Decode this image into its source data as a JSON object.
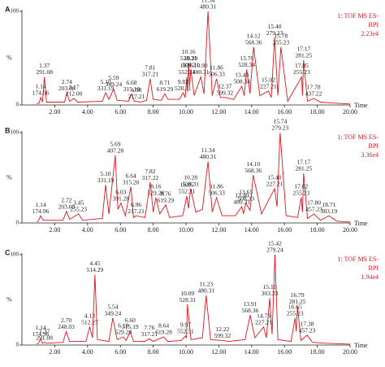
{
  "chart_data": [
    {
      "type": "line",
      "panel": "A",
      "y_label": "%",
      "x_label": "Time",
      "color": "#e3141d",
      "legend": [
        "1: TOF MS ES-",
        "BPI",
        "2.23e4"
      ],
      "xlim": [
        0,
        20
      ],
      "ylim": [
        0,
        100
      ],
      "yticks": [
        0,
        100
      ],
      "xticks": [
        {
          "value": 2,
          "label": "2.00"
        },
        {
          "value": 4,
          "label": "4.00"
        },
        {
          "value": 6,
          "label": "6.00"
        },
        {
          "value": 8,
          "label": "8.00"
        },
        {
          "value": 10,
          "label": "10.00"
        },
        {
          "value": 12,
          "label": "12.00"
        },
        {
          "value": 14,
          "label": "14.00"
        },
        {
          "value": 16,
          "label": "16.00"
        },
        {
          "value": 18,
          "label": "18.00"
        },
        {
          "value": 20,
          "label": "20.00"
        }
      ],
      "x": [
        0.9,
        1.05,
        1.14,
        1.25,
        1.37,
        1.5,
        2.6,
        2.74,
        2.9,
        3.17,
        3.4,
        4.9,
        5.1,
        5.3,
        5.59,
        5.8,
        6.5,
        6.68,
        6.85,
        6.98,
        7.2,
        7.6,
        7.81,
        8.0,
        8.5,
        8.71,
        8.9,
        9.6,
        9.82,
        9.95,
        10.05,
        10.1,
        10.16,
        10.22,
        10.29,
        10.5,
        10.9,
        11.1,
        11.34,
        11.6,
        11.86,
        12.1,
        12.37,
        12.9,
        13.4,
        13.55,
        13.7,
        13.9,
        14.12,
        14.5,
        15.02,
        15.2,
        15.4,
        15.6,
        15.78,
        16.2,
        17.05,
        17.1,
        17.17,
        17.4,
        17.78,
        18.2,
        19,
        20
      ],
      "values": [
        1,
        2,
        8,
        3,
        30,
        3,
        3,
        13,
        4,
        7,
        3,
        4,
        13,
        6,
        17,
        5,
        4,
        12,
        4,
        4,
        3,
        5,
        28,
        6,
        5,
        12,
        6,
        6,
        13,
        8,
        30,
        14,
        45,
        20,
        38,
        10,
        30,
        12,
        100,
        10,
        28,
        8,
        8,
        6,
        20,
        10,
        38,
        12,
        62,
        10,
        15,
        8,
        72,
        10,
        62,
        4,
        30,
        10,
        48,
        4,
        7,
        3,
        2,
        1
      ],
      "peaks": [
        {
          "time": 1.14,
          "mz": 174.96,
          "height": 8
        },
        {
          "time": 1.37,
          "mz": 291.08,
          "height": 30
        },
        {
          "time": 2.74,
          "mz": 203.08,
          "height": 13
        },
        {
          "time": 3.17,
          "mz": {
            "value": 212,
            "label": "212.00"
          },
          "height": 7
        },
        {
          "time": {
            "value": 5.1,
            "label": "5.10"
          },
          "mz": 331.19,
          "height": 13
        },
        {
          "time": 5.59,
          "mz": 349.24,
          "height": 17
        },
        {
          "time": 6.68,
          "mz": 315.19,
          "height": 12
        },
        {
          "time": 6.98,
          "mz": 217.21,
          "height": 4
        },
        {
          "time": 7.81,
          "mz": 317.21,
          "height": 28
        },
        {
          "time": 8.71,
          "mz": 619.29,
          "height": 12
        },
        {
          "time": 9.82,
          "mz": 528.31,
          "height": 13
        },
        {
          "time": 10.05,
          "mz": 552.31,
          "height": 30
        },
        {
          "time": 10.16,
          "mz": 528.31,
          "height": 45
        },
        {
          "time": 10.29,
          "mz": 504.31,
          "height": 38
        },
        {
          "time": {
            "value": 10.9,
            "label": "10.90"
          },
          "mz": 480.31,
          "height": 30
        },
        {
          "time": 11.34,
          "mz": 480.31,
          "height": 100
        },
        {
          "time": 11.86,
          "mz": 506.33,
          "height": 28
        },
        {
          "time": 12.37,
          "mz": 599.32,
          "height": 8
        },
        {
          "time": {
            "value": 13.4,
            "label": "13.40"
          },
          "mz": 508.34,
          "height": 20
        },
        {
          "time": {
            "value": 13.7,
            "label": "13.70"
          },
          "mz": 528.34,
          "height": 38
        },
        {
          "time": 14.12,
          "mz": 568.36,
          "height": 62
        },
        {
          "time": 15.02,
          "mz": 227.21,
          "height": 15
        },
        {
          "time": {
            "value": 15.4,
            "label": "15.40"
          },
          "mz": 279.23,
          "height": 72
        },
        {
          "time": 15.78,
          "mz": 255.23,
          "height": 62
        },
        {
          "time": 17.05,
          "mz": 255.23,
          "height": 30
        },
        {
          "time": 17.17,
          "mz": 281.25,
          "height": 48
        },
        {
          "time": 17.78,
          "mz": 437.22,
          "height": 7
        }
      ]
    },
    {
      "type": "line",
      "panel": "B",
      "y_label": "%",
      "x_label": "Time",
      "color": "#e3141d",
      "legend": [
        "1: TOF MS ES-",
        "BPI",
        "3.36e4"
      ],
      "xlim": [
        0,
        20
      ],
      "ylim": [
        0,
        100
      ],
      "yticks": [
        0,
        100
      ],
      "xticks": [
        {
          "value": 2,
          "label": "2.00"
        },
        {
          "value": 4,
          "label": "4.00"
        },
        {
          "value": 6,
          "label": "6.00"
        },
        {
          "value": 8,
          "label": "8.00"
        },
        {
          "value": 10,
          "label": "10.00"
        },
        {
          "value": 12,
          "label": "12.00"
        },
        {
          "value": 14,
          "label": "14.00"
        },
        {
          "value": 16,
          "label": "16.00"
        },
        {
          "value": 18,
          "label": "18.00"
        },
        {
          "value": 20,
          "label": "20.00"
        }
      ],
      "x": [
        0.9,
        1.0,
        1.14,
        1.3,
        2.5,
        2.72,
        2.9,
        3.45,
        3.7,
        4.9,
        5.1,
        5.3,
        5.69,
        5.85,
        6.03,
        6.3,
        6.64,
        6.8,
        6.96,
        7.5,
        7.82,
        8.0,
        8.16,
        8.4,
        8.76,
        9.0,
        9.8,
        10.05,
        10.15,
        10.28,
        10.6,
        11.0,
        11.34,
        11.6,
        11.86,
        12.2,
        13.0,
        13.4,
        13.5,
        13.65,
        13.9,
        14.1,
        14.6,
        15.4,
        15.55,
        15.74,
        16.1,
        16.8,
        17.02,
        17.1,
        17.17,
        17.4,
        17.8,
        18.2,
        18.71,
        19.2,
        20
      ],
      "values": [
        1,
        2,
        8,
        3,
        3,
        13,
        4,
        10,
        3,
        5,
        42,
        10,
        75,
        15,
        22,
        8,
        40,
        6,
        8,
        6,
        45,
        12,
        28,
        10,
        20,
        6,
        8,
        30,
        16,
        38,
        12,
        15,
        68,
        12,
        28,
        8,
        8,
        18,
        10,
        22,
        14,
        53,
        10,
        38,
        18,
        100,
        8,
        6,
        28,
        12,
        55,
        5,
        10,
        3,
        8,
        2,
        1
      ],
      "peaks": [
        {
          "time": 1.14,
          "mz": 174.96,
          "height": 8
        },
        {
          "time": 2.72,
          "mz": 203.08,
          "height": 13
        },
        {
          "time": 3.45,
          "mz": 255.23,
          "height": 10
        },
        {
          "time": {
            "value": 5.1,
            "label": "5.10"
          },
          "mz": 331.19,
          "height": 42
        },
        {
          "time": 5.69,
          "mz": 407.28,
          "height": 75
        },
        {
          "time": 6.03,
          "mz": 391.28,
          "height": 22
        },
        {
          "time": 6.64,
          "mz": {
            "value": 315.2,
            "label": "315.20"
          },
          "height": 40
        },
        {
          "time": 6.96,
          "mz": 217.21,
          "height": 8
        },
        {
          "time": 7.82,
          "mz": 317.22,
          "height": 45
        },
        {
          "time": 8.16,
          "mz": 529.28,
          "height": 28
        },
        {
          "time": 8.76,
          "mz": 619.29,
          "height": 20
        },
        {
          "time": 10.05,
          "mz": 552.31,
          "height": 30
        },
        {
          "time": 10.28,
          "mz": 528.31,
          "height": 38
        },
        {
          "time": 11.34,
          "mz": 480.31,
          "height": 68
        },
        {
          "time": 11.86,
          "mz": 506.33,
          "height": 28
        },
        {
          "time": {
            "value": 13.4,
            "label": "13.40"
          },
          "mz": 480.31,
          "height": 18
        },
        {
          "time": 13.65,
          "mz": 508.33,
          "height": 22
        },
        {
          "time": {
            "value": 14.1,
            "label": "14.10"
          },
          "mz": 568.36,
          "height": 53
        },
        {
          "time": {
            "value": 15.4,
            "label": "15.40"
          },
          "mz": 227.21,
          "height": 38
        },
        {
          "time": 15.74,
          "mz": 279.23,
          "height": 100
        },
        {
          "time": 17.02,
          "mz": 255.23,
          "height": 28
        },
        {
          "time": 17.17,
          "mz": 281.25,
          "height": 55
        },
        {
          "time": {
            "value": 17.8,
            "label": "17.80"
          },
          "mz": 457.23,
          "height": 10
        },
        {
          "time": 18.71,
          "mz": 383.19,
          "height": 8
        }
      ]
    },
    {
      "type": "line",
      "panel": "C",
      "y_label": "%",
      "x_label": "Time",
      "color": "#e3141d",
      "legend": [
        "1: TOF MS ES-",
        "BPI",
        "1.94e4"
      ],
      "xlim": [
        0,
        20
      ],
      "ylim": [
        0,
        100
      ],
      "yticks": [
        0,
        100
      ],
      "xticks": [
        {
          "value": 2,
          "label": "2.00"
        },
        {
          "value": 4,
          "label": "4.00"
        },
        {
          "value": 6,
          "label": "6.00"
        },
        {
          "value": 8,
          "label": "8.00"
        },
        {
          "value": 10,
          "label": "10.00"
        },
        {
          "value": 12,
          "label": "12.00"
        },
        {
          "value": 14,
          "label": "14.00"
        },
        {
          "value": 16,
          "label": "16.00"
        },
        {
          "value": 18,
          "label": "18.00"
        },
        {
          "value": 20,
          "label": "20.00"
        }
      ],
      "x": [
        0.9,
        1.0,
        1.14,
        1.25,
        1.37,
        1.5,
        2.5,
        2.7,
        2.9,
        3.9,
        4.13,
        4.3,
        4.45,
        4.6,
        5.3,
        5.54,
        5.8,
        6.18,
        6.35,
        6.6,
        6.8,
        7.5,
        7.76,
        8.0,
        8.64,
        8.9,
        9.7,
        9.97,
        10.03,
        10.09,
        10.3,
        11.0,
        11.23,
        11.5,
        12.22,
        12.6,
        13.6,
        13.91,
        14.2,
        14.73,
        14.9,
        15.1,
        15.25,
        15.42,
        15.6,
        16.4,
        16.65,
        16.72,
        16.79,
        17.0,
        17.38,
        17.7,
        18.5,
        20
      ],
      "values": [
        1,
        2,
        7,
        2,
        3,
        2,
        3,
        15,
        4,
        4,
        20,
        8,
        78,
        6,
        4,
        30,
        6,
        9,
        5,
        15,
        4,
        4,
        7,
        4,
        9,
        4,
        5,
        10,
        8,
        45,
        6,
        8,
        55,
        6,
        5,
        4,
        6,
        33,
        8,
        20,
        8,
        52,
        12,
        100,
        6,
        4,
        30,
        15,
        43,
        5,
        11,
        3,
        2,
        1
      ],
      "peaks": [
        {
          "time": 1.14,
          "mz": 174.96,
          "height": 7
        },
        {
          "time": 1.37,
          "mz": 291.08,
          "height": 3
        },
        {
          "time": {
            "value": 2.7,
            "label": "2.70"
          },
          "mz": 248.03,
          "height": 15
        },
        {
          "time": 4.13,
          "mz": 512.27,
          "height": 20
        },
        {
          "time": 4.45,
          "mz": 514.29,
          "height": 78
        },
        {
          "time": 5.54,
          "mz": 349.24,
          "height": 30
        },
        {
          "time": 6.18,
          "mz": 529.28,
          "height": 9
        },
        {
          "time": {
            "value": 6.6,
            "label": "6.60"
          },
          "mz": 315.19,
          "height": 15
        },
        {
          "time": 7.76,
          "mz": 317.21,
          "height": 7
        },
        {
          "time": 8.64,
          "mz": 619.28,
          "height": 9
        },
        {
          "time": 9.97,
          "mz": 552.31,
          "height": 10
        },
        {
          "time": 10.09,
          "mz": 528.31,
          "height": 45
        },
        {
          "time": 11.23,
          "mz": 480.31,
          "height": 55
        },
        {
          "time": 12.22,
          "mz": 599.32,
          "height": 5
        },
        {
          "time": 13.91,
          "mz": 568.36,
          "height": 33
        },
        {
          "time": 14.73,
          "mz": 227.21,
          "height": 20
        },
        {
          "time": {
            "value": 15.1,
            "label": "15.10"
          },
          "mz": 303.23,
          "height": 52
        },
        {
          "time": 15.42,
          "mz": 279.24,
          "height": 100
        },
        {
          "time": 16.65,
          "mz": 255.23,
          "height": 30
        },
        {
          "time": 16.79,
          "mz": 281.25,
          "height": 43
        },
        {
          "time": 17.38,
          "mz": 457.23,
          "height": 11
        }
      ]
    }
  ]
}
